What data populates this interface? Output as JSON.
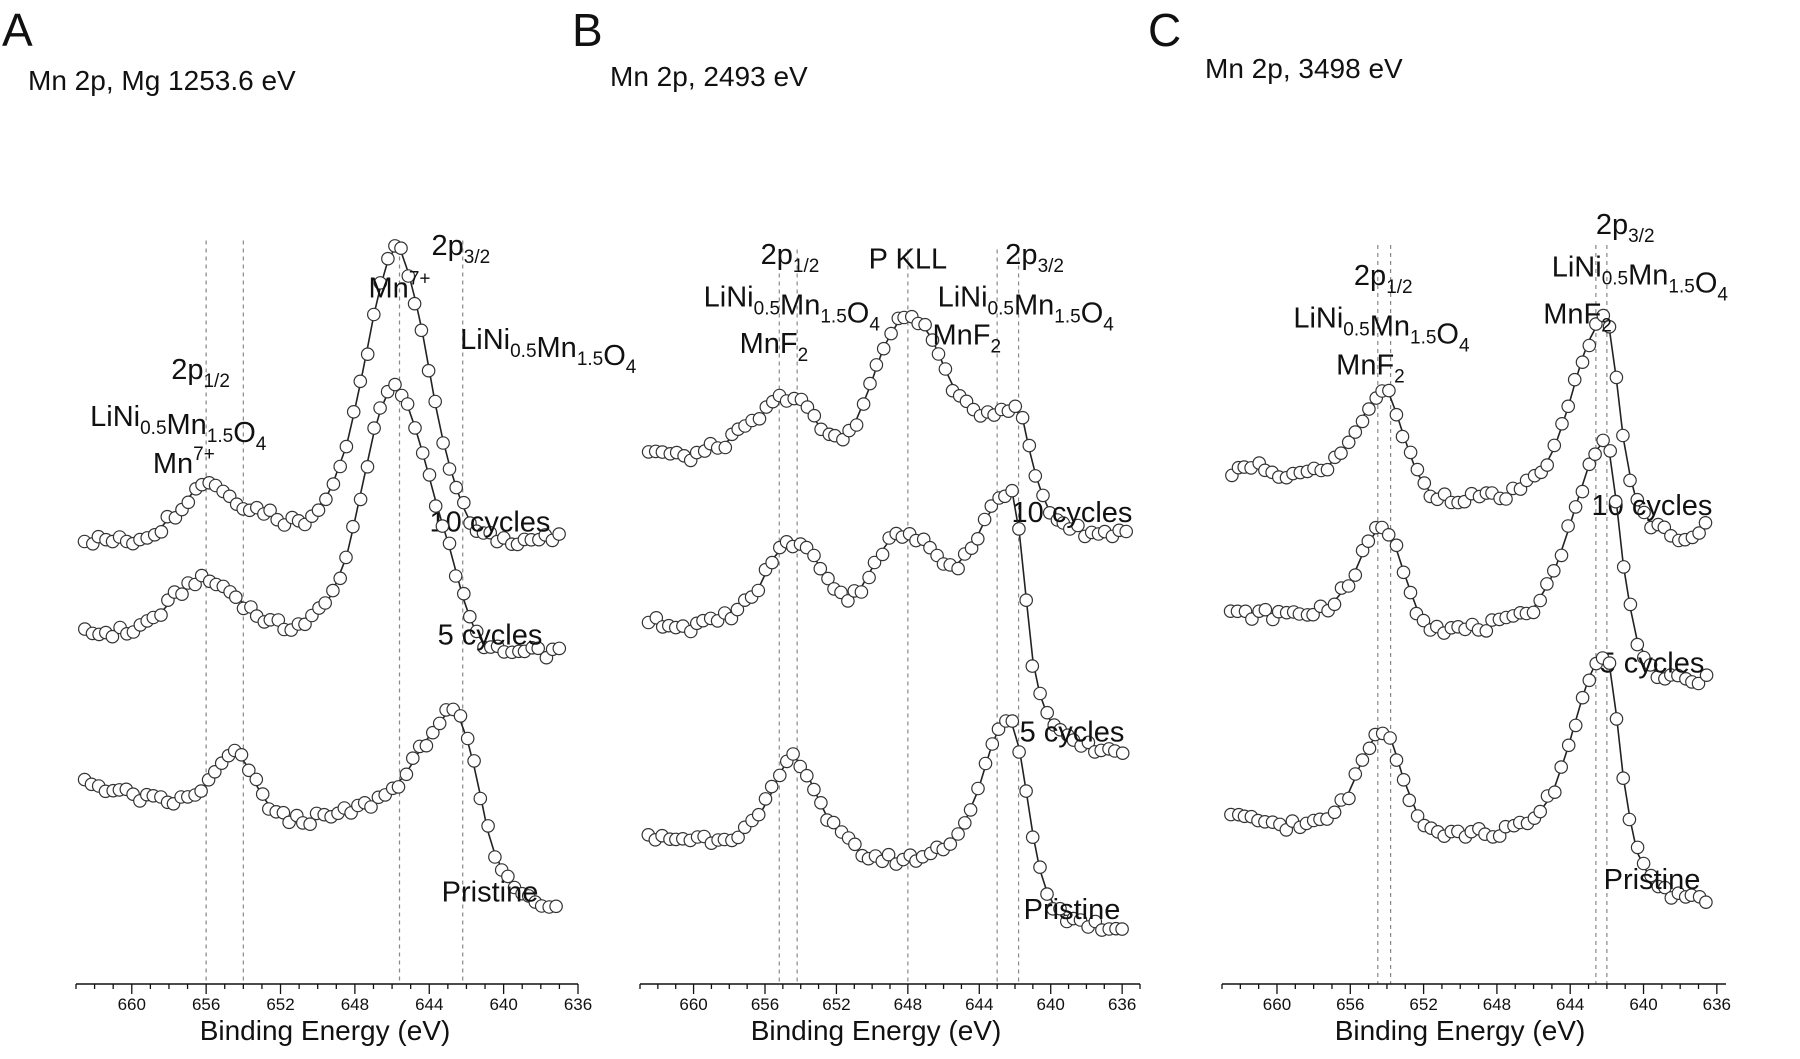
{
  "figure": {
    "x_min": 636,
    "x_max": 663
  },
  "chart_data": [
    {
      "type": "scatter",
      "panel_label": "A",
      "title": "Mn 2p, Mg 1253.6 eV",
      "xlabel": "Binding Energy (eV)",
      "ylabel": "",
      "xlim": [
        663,
        636
      ],
      "x_reversed": true,
      "x_ticks": [
        660,
        656,
        652,
        648,
        644,
        640,
        636
      ],
      "x_range_data": [
        662.5,
        637
      ],
      "reference_lines": [
        656.0,
        654.0,
        645.6,
        642.2
      ],
      "annotations": [
        {
          "text": "Mn",
          "sup": "7+",
          "x": 645.6,
          "y": 0.96
        },
        {
          "text": "2p",
          "sub": "3/2",
          "x": 642.3,
          "y": 1.06
        },
        {
          "text": "LiNi",
          "sub": "0.5",
          "text2": "Mn",
          "sub2": "1.5",
          "text3": "O",
          "sub3": "4",
          "x": 637.6,
          "y": 0.84
        },
        {
          "text": "2p",
          "sub": "1/2",
          "x": 656.3,
          "y": 0.77
        },
        {
          "text": "LiNi",
          "sub": "0.5",
          "text2": "Mn",
          "sub2": "1.5",
          "text3": "O",
          "sub3": "4",
          "x": 657.5,
          "y": 0.66
        },
        {
          "text": "Mn",
          "sup": "7+",
          "x": 657.2,
          "y": 0.55
        }
      ],
      "series": [
        {
          "label": "10 cycles",
          "x": [
            662.5,
            660,
            658.5,
            657,
            656.2,
            655.6,
            654.6,
            653.6,
            652.6,
            651.8,
            650.6,
            649.4,
            648.4,
            647.6,
            646.8,
            646.2,
            645.8,
            645.4,
            645,
            644.5,
            644,
            643.5,
            643,
            642.5,
            642,
            641.4,
            640.8,
            640,
            639,
            638,
            637
          ],
          "y": [
            0.395,
            0.39,
            0.42,
            0.49,
            0.53,
            0.53,
            0.49,
            0.47,
            0.46,
            0.44,
            0.44,
            0.5,
            0.62,
            0.78,
            0.96,
            1.05,
            1.08,
            1.06,
            1.0,
            0.91,
            0.79,
            0.67,
            0.58,
            0.51,
            0.45,
            0.41,
            0.4,
            0.395,
            0.395,
            0.395,
            0.395
          ]
        },
        {
          "label": "5 cycles",
          "x": [
            662.5,
            660,
            658.5,
            657.5,
            656.6,
            655.6,
            654.6,
            653.6,
            652.6,
            651.8,
            650.6,
            649.4,
            648.4,
            647.6,
            646.8,
            646.2,
            645.8,
            645.4,
            645,
            644.5,
            644,
            643.5,
            643,
            642.5,
            642,
            641.4,
            640.8,
            640,
            639,
            638,
            637
          ],
          "y": [
            0.175,
            0.18,
            0.22,
            0.27,
            0.3,
            0.295,
            0.27,
            0.23,
            0.2,
            0.19,
            0.2,
            0.25,
            0.36,
            0.52,
            0.68,
            0.74,
            0.75,
            0.73,
            0.69,
            0.62,
            0.54,
            0.46,
            0.39,
            0.31,
            0.23,
            0.17,
            0.14,
            0.13,
            0.13,
            0.13,
            0.13
          ]
        },
        {
          "label": "Pristine",
          "x": [
            662.5,
            661,
            659.5,
            658,
            656.8,
            655.6,
            655,
            654.4,
            653.8,
            653.2,
            652.4,
            651.6,
            650.6,
            649.4,
            648.2,
            647,
            646,
            645.2,
            644.4,
            643.6,
            643,
            642.4,
            641.9,
            641.4,
            640.9,
            640.4,
            639.8,
            639,
            638,
            637.2
          ],
          "y": [
            -0.17,
            -0.19,
            -0.21,
            -0.22,
            -0.21,
            -0.16,
            -0.12,
            -0.105,
            -0.13,
            -0.19,
            -0.24,
            -0.26,
            -0.26,
            -0.255,
            -0.24,
            -0.22,
            -0.19,
            -0.15,
            -0.09,
            -0.04,
            -0.01,
            -0.02,
            -0.08,
            -0.17,
            -0.28,
            -0.35,
            -0.4,
            -0.43,
            -0.45,
            -0.47
          ]
        }
      ]
    },
    {
      "type": "scatter",
      "panel_label": "B",
      "title": "Mn 2p, 2493 eV",
      "xlabel": "Binding Energy (eV)",
      "ylabel": "",
      "xlim": [
        663,
        635
      ],
      "x_reversed": true,
      "x_ticks": [
        660,
        656,
        652,
        648,
        644,
        640,
        636
      ],
      "x_range_data": [
        662.5,
        635.5
      ],
      "reference_lines": [
        655.2,
        654.2,
        648.0,
        643.0,
        641.8
      ],
      "annotations": [
        {
          "text": "2p",
          "sub": "1/2",
          "x": 654.6,
          "y": 1.06
        },
        {
          "text": "LiNi",
          "sub": "0.5",
          "text2": "Mn",
          "sub2": "1.5",
          "text3": "O",
          "sub3": "4",
          "x": 654.5,
          "y": 0.96
        },
        {
          "text": "MnF",
          "sub": "2",
          "x": 655.5,
          "y": 0.85
        },
        {
          "text": "P KLL",
          "x": 648.0,
          "y": 1.05
        },
        {
          "text": "MnF",
          "sub": "2",
          "x": 644.7,
          "y": 0.87
        },
        {
          "text": "2p",
          "sub": "3/2",
          "x": 640.9,
          "y": 1.06
        },
        {
          "text": "LiNi",
          "sub": "0.5",
          "text2": "Mn",
          "sub2": "1.5",
          "text3": "O",
          "sub3": "4",
          "x": 641.4,
          "y": 0.96
        }
      ],
      "series": [
        {
          "label": "10 cycles",
          "x": [
            662.5,
            660.5,
            658.5,
            657,
            656,
            655.2,
            654.6,
            654,
            653.4,
            652.6,
            651.8,
            651,
            650.2,
            649.4,
            648.6,
            648,
            647.4,
            646.6,
            645.8,
            645,
            644.2,
            643.4,
            642.8,
            642.2,
            641.6,
            641,
            640.2,
            639.4,
            638.5,
            637.2,
            635.8
          ],
          "y": [
            0.62,
            0.6,
            0.63,
            0.67,
            0.71,
            0.74,
            0.75,
            0.74,
            0.7,
            0.66,
            0.64,
            0.68,
            0.76,
            0.86,
            0.92,
            0.94,
            0.93,
            0.88,
            0.8,
            0.73,
            0.71,
            0.71,
            0.72,
            0.72,
            0.7,
            0.58,
            0.48,
            0.45,
            0.43,
            0.42,
            0.43
          ]
        },
        {
          "label": "5 cycles",
          "x": [
            662.5,
            660.5,
            659,
            657.5,
            656.5,
            655.6,
            654.8,
            654.2,
            653.6,
            652.8,
            652,
            651.4,
            650.8,
            650,
            649.2,
            648.4,
            647.6,
            646.8,
            646,
            645.2,
            644.4,
            643.6,
            642.8,
            642.2,
            641.8,
            641.4,
            641,
            640.5,
            639.8,
            639,
            638.2,
            637.2,
            636
          ],
          "y": [
            0.22,
            0.2,
            0.21,
            0.24,
            0.28,
            0.36,
            0.4,
            0.4,
            0.38,
            0.34,
            0.29,
            0.27,
            0.28,
            0.34,
            0.4,
            0.42,
            0.41,
            0.39,
            0.36,
            0.35,
            0.39,
            0.46,
            0.51,
            0.53,
            0.44,
            0.28,
            0.12,
            0.02,
            -0.04,
            -0.07,
            -0.08,
            -0.09,
            -0.09
          ]
        },
        {
          "label": "Pristine",
          "x": [
            662.5,
            660.5,
            659,
            657.5,
            656.5,
            655.6,
            655,
            654.6,
            654.2,
            653.8,
            653.2,
            652.4,
            651.4,
            650.4,
            649.2,
            648,
            647,
            646,
            645,
            644,
            643.4,
            642.8,
            642.4,
            642,
            641.6,
            641.2,
            640.8,
            640.4,
            639.8,
            639,
            638,
            637,
            636
          ],
          "y": [
            -0.3,
            -0.3,
            -0.3,
            -0.29,
            -0.26,
            -0.19,
            -0.13,
            -0.11,
            -0.11,
            -0.13,
            -0.19,
            -0.26,
            -0.31,
            -0.34,
            -0.35,
            -0.35,
            -0.34,
            -0.32,
            -0.28,
            -0.18,
            -0.09,
            -0.03,
            -0.02,
            -0.04,
            -0.12,
            -0.24,
            -0.34,
            -0.41,
            -0.46,
            -0.49,
            -0.5,
            -0.51,
            -0.51
          ]
        }
      ]
    },
    {
      "type": "scatter",
      "panel_label": "C",
      "title": "Mn 2p, 3498 eV",
      "xlabel": "Binding Energy (eV)",
      "ylabel": "",
      "xlim": [
        663,
        635.5
      ],
      "x_reversed": true,
      "x_ticks": [
        660,
        656,
        652,
        648,
        644,
        640,
        636
      ],
      "x_range_data": [
        662.5,
        636.5
      ],
      "reference_lines": [
        654.5,
        653.8,
        642.6,
        642.0
      ],
      "annotations": [
        {
          "text": "2p",
          "sub": "3/2",
          "x": 641.0,
          "y": 1.12
        },
        {
          "text": "LiNi",
          "sub": "0.5",
          "text2": "Mn",
          "sub2": "1.5",
          "text3": "O",
          "sub3": "4",
          "x": 640.2,
          "y": 1.02
        },
        {
          "text": "MnF",
          "sub": "2",
          "x": 643.6,
          "y": 0.91
        },
        {
          "text": "2p",
          "sub": "1/2",
          "x": 654.2,
          "y": 1.0
        },
        {
          "text": "LiNi",
          "sub": "0.5",
          "text2": "Mn",
          "sub2": "1.5",
          "text3": "O",
          "sub3": "4",
          "x": 654.3,
          "y": 0.9
        },
        {
          "text": "MnF",
          "sub": "2",
          "x": 654.9,
          "y": 0.79
        }
      ],
      "series": [
        {
          "label": "10 cycles",
          "x": [
            662.5,
            661,
            659.5,
            658,
            657,
            656,
            655.2,
            654.6,
            654.2,
            653.8,
            653.2,
            652.4,
            651.6,
            650.6,
            649.4,
            648.2,
            647,
            646,
            645,
            644.2,
            643.4,
            642.8,
            642.2,
            641.8,
            641.4,
            641,
            640.4,
            639.6,
            638.8,
            638,
            637.2,
            636.6
          ],
          "y": [
            0.56,
            0.57,
            0.55,
            0.56,
            0.58,
            0.63,
            0.7,
            0.74,
            0.75,
            0.74,
            0.66,
            0.56,
            0.51,
            0.5,
            0.5,
            0.5,
            0.51,
            0.54,
            0.6,
            0.7,
            0.82,
            0.89,
            0.92,
            0.89,
            0.75,
            0.6,
            0.49,
            0.44,
            0.42,
            0.41,
            0.41,
            0.44
          ]
        },
        {
          "label": "5 cycles",
          "x": [
            662.5,
            661,
            659.5,
            658,
            657,
            656,
            655.2,
            654.6,
            654.2,
            653.8,
            653.2,
            652.4,
            651.6,
            650.6,
            649.4,
            648.2,
            647,
            646,
            645,
            644.2,
            643.4,
            642.8,
            642.2,
            641.8,
            641.4,
            641,
            640.4,
            639.6,
            638.8,
            638,
            637.2,
            636.6
          ],
          "y": [
            0.225,
            0.225,
            0.225,
            0.23,
            0.25,
            0.3,
            0.38,
            0.42,
            0.43,
            0.42,
            0.34,
            0.24,
            0.2,
            0.19,
            0.19,
            0.2,
            0.21,
            0.24,
            0.31,
            0.41,
            0.52,
            0.6,
            0.63,
            0.6,
            0.46,
            0.3,
            0.17,
            0.1,
            0.07,
            0.07,
            0.07,
            0.07
          ]
        },
        {
          "label": "Pristine",
          "x": [
            662.5,
            661,
            659.5,
            658,
            657,
            656,
            655.2,
            654.6,
            654.2,
            653.8,
            653.2,
            652.4,
            651.6,
            650.6,
            649.4,
            648.2,
            647,
            646,
            645,
            644.2,
            643.4,
            642.8,
            642.2,
            641.8,
            641.4,
            641,
            640.4,
            639.6,
            638.8,
            638,
            637.2,
            636.6
          ],
          "y": [
            -0.255,
            -0.26,
            -0.27,
            -0.27,
            -0.25,
            -0.19,
            -0.1,
            -0.06,
            -0.05,
            -0.06,
            -0.15,
            -0.24,
            -0.28,
            -0.29,
            -0.29,
            -0.29,
            -0.28,
            -0.26,
            -0.2,
            -0.1,
            0.02,
            0.1,
            0.13,
            0.1,
            -0.04,
            -0.2,
            -0.33,
            -0.4,
            -0.43,
            -0.44,
            -0.44,
            -0.44
          ]
        }
      ]
    }
  ]
}
